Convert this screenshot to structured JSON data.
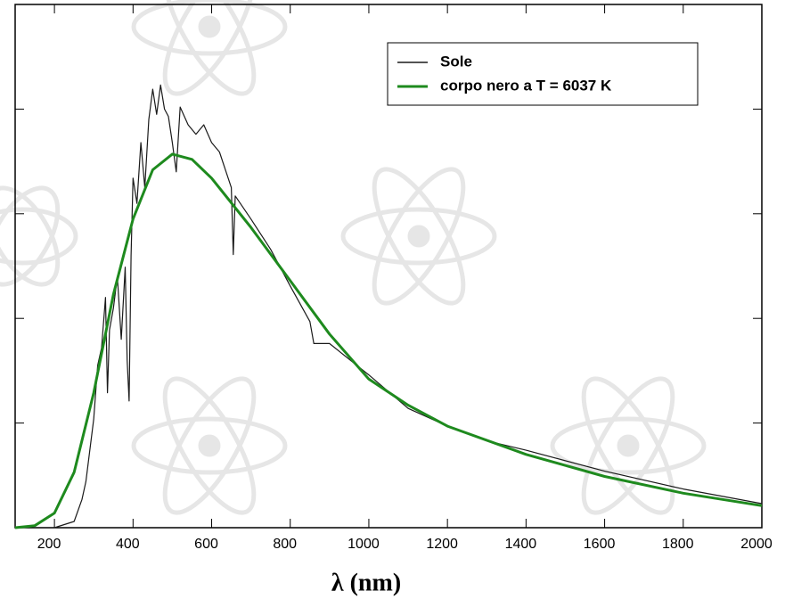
{
  "chart_data": {
    "type": "line",
    "x_label": "λ (nm)",
    "xlim": [
      100,
      2000
    ],
    "xticks": [
      200,
      400,
      600,
      800,
      1000,
      1200,
      1400,
      1600,
      1800,
      2000
    ],
    "ylim": [
      0,
      5
    ],
    "yticks": [
      0,
      1,
      2,
      3,
      4,
      5
    ],
    "legend": "upper right",
    "series": [
      {
        "name": "Sole",
        "color": "#1a1a1a",
        "x": [
          200,
          250,
          270,
          280,
          300,
          310,
          320,
          330,
          335,
          340,
          350,
          360,
          370,
          380,
          385,
          390,
          395,
          400,
          410,
          420,
          430,
          440,
          450,
          460,
          470,
          480,
          490,
          500,
          510,
          520,
          540,
          560,
          580,
          600,
          620,
          650,
          655,
          660,
          700,
          750,
          800,
          850,
          860,
          900,
          1000,
          1100,
          1200,
          1300,
          1400,
          1600,
          1800,
          2000
        ],
        "values": [
          0,
          0.06,
          0.27,
          0.44,
          1.04,
          1.55,
          1.72,
          2.2,
          1.29,
          1.89,
          2.1,
          2.4,
          1.8,
          2.49,
          1.6,
          1.21,
          2.6,
          3.34,
          3.1,
          3.68,
          3.25,
          3.9,
          4.19,
          3.95,
          4.23,
          4.0,
          3.93,
          3.68,
          3.4,
          4.02,
          3.85,
          3.76,
          3.85,
          3.68,
          3.59,
          3.25,
          2.61,
          3.17,
          2.95,
          2.66,
          2.31,
          1.97,
          1.76,
          1.76,
          1.46,
          1.14,
          0.97,
          0.83,
          0.74,
          0.54,
          0.37,
          0.23
        ]
      },
      {
        "name": "corpo nero a T = 6037 K",
        "color": "#1e8a1e",
        "x": [
          100,
          150,
          200,
          250,
          300,
          350,
          400,
          450,
          500,
          550,
          600,
          700,
          800,
          900,
          1000,
          1100,
          1200,
          1400,
          1600,
          1800,
          2000
        ],
        "values": [
          0,
          0.02,
          0.14,
          0.53,
          1.29,
          2.23,
          2.95,
          3.42,
          3.57,
          3.52,
          3.34,
          2.87,
          2.36,
          1.85,
          1.42,
          1.17,
          0.97,
          0.7,
          0.49,
          0.33,
          0.21
        ]
      }
    ]
  }
}
